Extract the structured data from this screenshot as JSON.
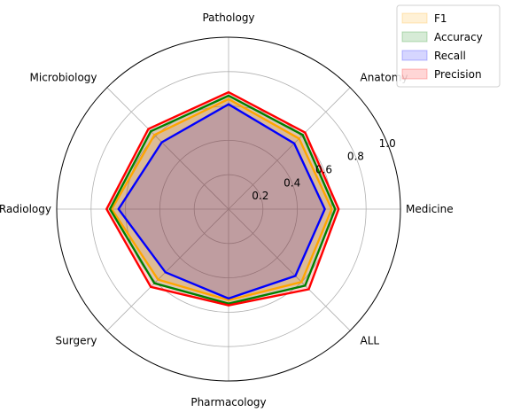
{
  "chart_data": {
    "type": "radar",
    "title": "",
    "categories": [
      "Medicine",
      "Anatomy",
      "Pathology",
      "Microbiology",
      "Radiology",
      "Surgery",
      "Pharmacology",
      "ALL"
    ],
    "rlim": [
      0,
      1.0
    ],
    "rticks": [
      0.2,
      0.4,
      0.6,
      0.8,
      1.0
    ],
    "rtick_labels": [
      "0.2",
      "0.4",
      "0.6",
      "0.8",
      "1.0"
    ],
    "grid": true,
    "legend_position": "top-right",
    "series": [
      {
        "name": "F1",
        "line_color": "#ffa500",
        "fill_color": "#ffa500",
        "values": [
          0.6,
          0.58,
          0.64,
          0.61,
          0.68,
          0.58,
          0.53,
          0.6
        ]
      },
      {
        "name": "Accuracy",
        "line_color": "#008000",
        "fill_color": "#008000",
        "values": [
          0.62,
          0.61,
          0.66,
          0.64,
          0.69,
          0.61,
          0.55,
          0.63
        ]
      },
      {
        "name": "Recall",
        "line_color": "#0000ff",
        "fill_color": "#0000ff",
        "values": [
          0.56,
          0.54,
          0.61,
          0.55,
          0.64,
          0.52,
          0.52,
          0.55
        ]
      },
      {
        "name": "Precision",
        "line_color": "#ff0000",
        "fill_color": "#ff0000",
        "values": [
          0.64,
          0.63,
          0.68,
          0.66,
          0.71,
          0.64,
          0.56,
          0.66
        ]
      }
    ]
  }
}
